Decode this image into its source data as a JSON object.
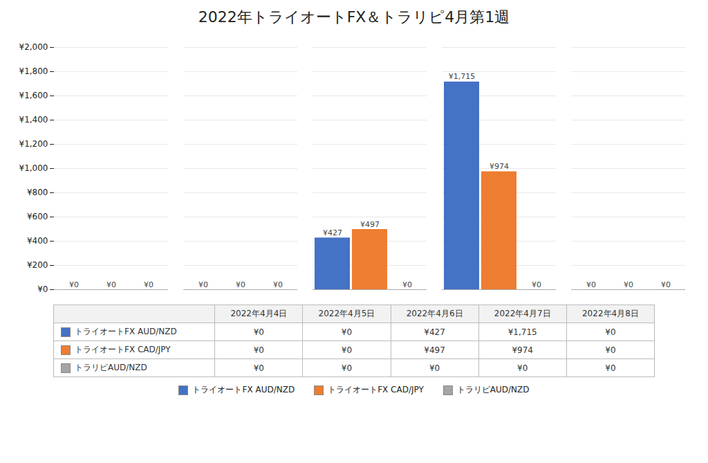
{
  "chart_data": {
    "type": "bar",
    "title": "2022年トライオートFX＆トラリピ4月第1週",
    "categories": [
      "2022年4月4日",
      "2022年4月5日",
      "2022年4月6日",
      "2022年4月7日",
      "2022年4月8日"
    ],
    "series": [
      {
        "name": "トライオートFX AUD/NZD",
        "color": "#4472C4",
        "values": [
          0,
          0,
          427,
          1715,
          0
        ],
        "value_labels": [
          "¥0",
          "¥0",
          "¥427",
          "¥1,715",
          "¥0"
        ]
      },
      {
        "name": "トライオートFX CAD/JPY",
        "color": "#ED7D31",
        "values": [
          0,
          0,
          497,
          974,
          0
        ],
        "value_labels": [
          "¥0",
          "¥0",
          "¥497",
          "¥974",
          "¥0"
        ]
      },
      {
        "name": "トラリピAUD/NZD",
        "color": "#A5A5A5",
        "values": [
          0,
          0,
          0,
          0,
          0
        ],
        "value_labels": [
          "¥0",
          "¥0",
          "¥0",
          "¥0",
          "¥0"
        ]
      }
    ],
    "ylim": [
      0,
      2000
    ],
    "yticks": [
      {
        "value": 0,
        "label": "¥0"
      },
      {
        "value": 200,
        "label": "¥200"
      },
      {
        "value": 400,
        "label": "¥400"
      },
      {
        "value": 600,
        "label": "¥600"
      },
      {
        "value": 800,
        "label": "¥800"
      },
      {
        "value": 1000,
        "label": "¥1,000"
      },
      {
        "value": 1200,
        "label": "¥1,200"
      },
      {
        "value": 1400,
        "label": "¥1,400"
      },
      {
        "value": 1600,
        "label": "¥1,600"
      },
      {
        "value": 1800,
        "label": "¥1,800"
      },
      {
        "value": 2000,
        "label": "¥2,000"
      }
    ],
    "grid": true,
    "data_labels": true,
    "tick_labels": "y",
    "legend": "bottom"
  }
}
